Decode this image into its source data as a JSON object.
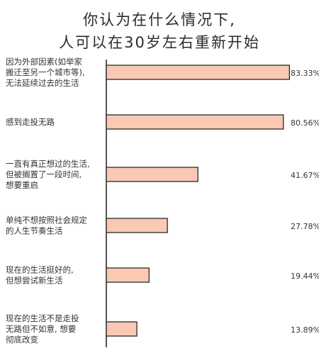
{
  "chart_data": {
    "type": "bar",
    "orientation": "horizontal",
    "title_lines": [
      "你认为在什么情况下,",
      "人可以在30岁左右重新开始"
    ],
    "categories": [
      [
        "因为外部因素(如举家",
        "搬迁至另一个城市等),",
        "无法延续过去的生活"
      ],
      [
        "感到走投无路"
      ],
      [
        "一直有真正想过的生活,",
        "但被搁置了一段时间,",
        "想要重启"
      ],
      [
        "单纯不想按照社会规定",
        "的人生节奏生活"
      ],
      [
        "现在的生活挺好的,",
        "但想尝试新生活"
      ],
      [
        "现在的生活不是走投",
        "无路但不如意, 想要",
        "彻底改变"
      ]
    ],
    "values": [
      83.33,
      80.56,
      41.67,
      27.78,
      19.44,
      13.89
    ],
    "value_labels": [
      "83.33%",
      "80.56%",
      "41.67%",
      "27.78%",
      "19.44%",
      "13.89%"
    ],
    "xlim": [
      0,
      100
    ],
    "grid": false,
    "legend": "none",
    "colors": {
      "bar_fill": "#f9c9b4",
      "bar_stroke": "#2a2a2a",
      "axis": "#2a2a2a",
      "text": "#333333"
    }
  }
}
